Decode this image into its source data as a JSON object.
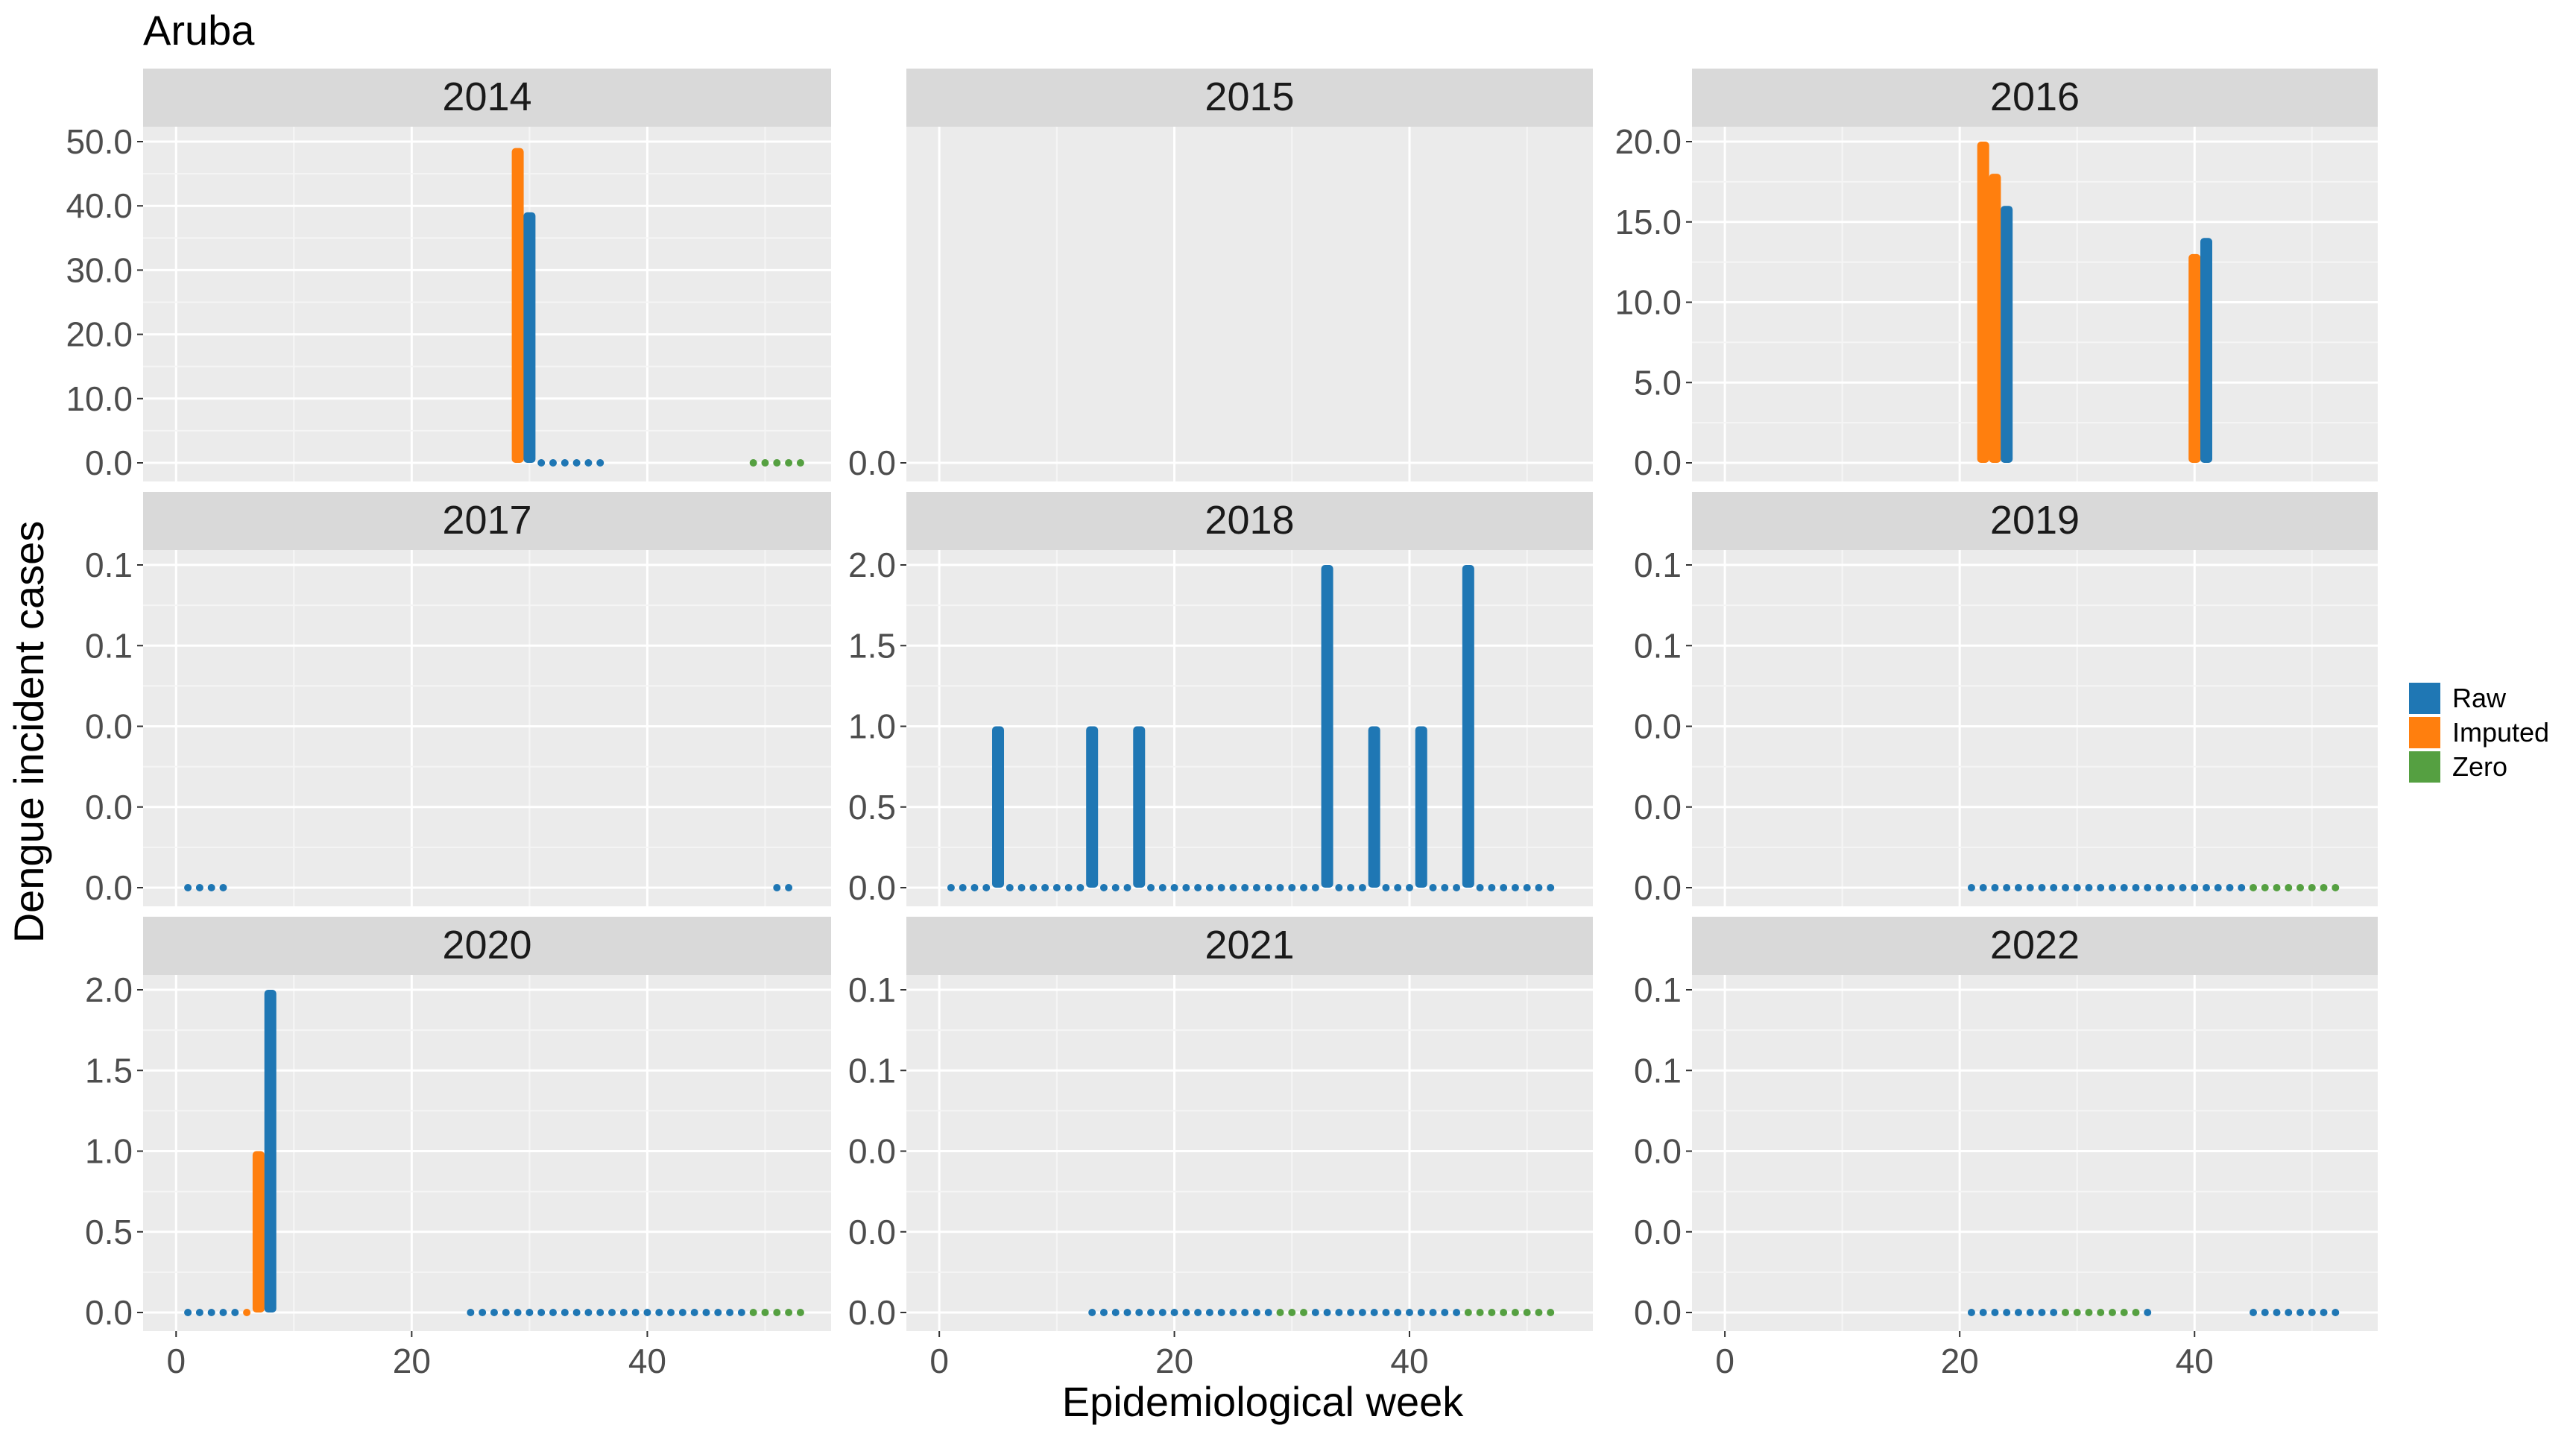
{
  "chart_data": {
    "type": "bar",
    "title": "Aruba",
    "xlabel": "Epidemiological week",
    "ylabel": "Dengue incident cases",
    "x_ticks": [
      0,
      20,
      40
    ],
    "grid": true,
    "legend": {
      "position": "right",
      "entries": [
        {
          "name": "Raw",
          "color": "#1f77b4"
        },
        {
          "name": "Imputed",
          "color": "#ff7f0e"
        },
        {
          "name": "Zero",
          "color": "#55a041"
        }
      ]
    },
    "panels": [
      {
        "year": "2014",
        "ylim": [
          0,
          50
        ],
        "y_ticks": [
          0,
          10,
          20,
          30,
          40,
          50
        ],
        "y_tick_labels": [
          "0.0",
          "10.0",
          "20.0",
          "30.0",
          "40.0",
          "50.0"
        ],
        "raw": [
          [
            30,
            39
          ],
          [
            31,
            0
          ],
          [
            32,
            0
          ],
          [
            33,
            0
          ],
          [
            34,
            0
          ],
          [
            35,
            0
          ],
          [
            36,
            0
          ]
        ],
        "imputed": [
          [
            29,
            49
          ]
        ],
        "zero": [
          [
            49,
            0
          ],
          [
            50,
            0
          ],
          [
            51,
            0
          ],
          [
            52,
            0
          ],
          [
            53,
            0
          ]
        ]
      },
      {
        "year": "2015",
        "ylim": [
          0,
          1
        ],
        "y_ticks": [
          0
        ],
        "y_tick_labels": [
          "0.0"
        ],
        "raw": [],
        "imputed": [],
        "zero": []
      },
      {
        "year": "2016",
        "ylim": [
          0,
          20
        ],
        "y_ticks": [
          0,
          5,
          10,
          15,
          20
        ],
        "y_tick_labels": [
          "0.0",
          "5.0",
          "10.0",
          "15.0",
          "20.0"
        ],
        "raw": [
          [
            24,
            16
          ],
          [
            41,
            14
          ]
        ],
        "imputed": [
          [
            22,
            20
          ],
          [
            23,
            18
          ],
          [
            40,
            13
          ]
        ],
        "zero": []
      },
      {
        "year": "2017",
        "ylim": [
          0,
          0.1
        ],
        "y_ticks": [
          0,
          0.025,
          0.05,
          0.075,
          0.1
        ],
        "y_tick_labels": [
          "0.0",
          "0.0",
          "0.0",
          "0.1",
          "0.1"
        ],
        "raw": [
          [
            1,
            0
          ],
          [
            2,
            0
          ],
          [
            3,
            0
          ],
          [
            4,
            0
          ],
          [
            51,
            0
          ],
          [
            52,
            0
          ]
        ],
        "imputed": [],
        "zero": []
      },
      {
        "year": "2018",
        "ylim": [
          0,
          2
        ],
        "y_ticks": [
          0,
          0.5,
          1,
          1.5,
          2
        ],
        "y_tick_labels": [
          "0.0",
          "0.5",
          "1.0",
          "1.5",
          "2.0"
        ],
        "raw": [
          [
            1,
            0
          ],
          [
            2,
            0
          ],
          [
            3,
            0
          ],
          [
            4,
            0
          ],
          [
            5,
            1
          ],
          [
            6,
            0
          ],
          [
            7,
            0
          ],
          [
            8,
            0
          ],
          [
            9,
            0
          ],
          [
            10,
            0
          ],
          [
            11,
            0
          ],
          [
            12,
            0
          ],
          [
            13,
            1
          ],
          [
            14,
            0
          ],
          [
            15,
            0
          ],
          [
            16,
            0
          ],
          [
            17,
            1
          ],
          [
            18,
            0
          ],
          [
            19,
            0
          ],
          [
            20,
            0
          ],
          [
            21,
            0
          ],
          [
            22,
            0
          ],
          [
            23,
            0
          ],
          [
            24,
            0
          ],
          [
            25,
            0
          ],
          [
            26,
            0
          ],
          [
            27,
            0
          ],
          [
            28,
            0
          ],
          [
            29,
            0
          ],
          [
            30,
            0
          ],
          [
            31,
            0
          ],
          [
            32,
            0
          ],
          [
            33,
            2
          ],
          [
            34,
            0
          ],
          [
            35,
            0
          ],
          [
            36,
            0
          ],
          [
            37,
            1
          ],
          [
            38,
            0
          ],
          [
            39,
            0
          ],
          [
            40,
            0
          ],
          [
            41,
            1
          ],
          [
            42,
            0
          ],
          [
            43,
            0
          ],
          [
            44,
            0
          ],
          [
            45,
            2
          ],
          [
            46,
            0
          ],
          [
            47,
            0
          ],
          [
            48,
            0
          ],
          [
            49,
            0
          ],
          [
            50,
            0
          ],
          [
            51,
            0
          ],
          [
            52,
            0
          ]
        ],
        "imputed": [],
        "zero": []
      },
      {
        "year": "2019",
        "ylim": [
          0,
          0.1
        ],
        "y_ticks": [
          0,
          0.025,
          0.05,
          0.075,
          0.1
        ],
        "y_tick_labels": [
          "0.0",
          "0.0",
          "0.0",
          "0.1",
          "0.1"
        ],
        "raw": [
          [
            21,
            0
          ],
          [
            22,
            0
          ],
          [
            23,
            0
          ],
          [
            24,
            0
          ],
          [
            25,
            0
          ],
          [
            26,
            0
          ],
          [
            27,
            0
          ],
          [
            28,
            0
          ],
          [
            29,
            0
          ],
          [
            30,
            0
          ],
          [
            31,
            0
          ],
          [
            32,
            0
          ],
          [
            33,
            0
          ],
          [
            34,
            0
          ],
          [
            35,
            0
          ],
          [
            36,
            0
          ],
          [
            37,
            0
          ],
          [
            38,
            0
          ],
          [
            39,
            0
          ],
          [
            40,
            0
          ],
          [
            41,
            0
          ],
          [
            42,
            0
          ],
          [
            43,
            0
          ],
          [
            44,
            0
          ]
        ],
        "imputed": [],
        "zero": [
          [
            45,
            0
          ],
          [
            46,
            0
          ],
          [
            47,
            0
          ],
          [
            48,
            0
          ],
          [
            49,
            0
          ],
          [
            50,
            0
          ],
          [
            51,
            0
          ],
          [
            52,
            0
          ]
        ]
      },
      {
        "year": "2020",
        "ylim": [
          0,
          2
        ],
        "y_ticks": [
          0,
          0.5,
          1,
          1.5,
          2
        ],
        "y_tick_labels": [
          "0.0",
          "0.5",
          "1.0",
          "1.5",
          "2.0"
        ],
        "raw": [
          [
            1,
            0
          ],
          [
            2,
            0
          ],
          [
            3,
            0
          ],
          [
            4,
            0
          ],
          [
            5,
            0
          ],
          [
            8,
            2
          ],
          [
            25,
            0
          ],
          [
            26,
            0
          ],
          [
            27,
            0
          ],
          [
            28,
            0
          ],
          [
            29,
            0
          ],
          [
            30,
            0
          ],
          [
            31,
            0
          ],
          [
            32,
            0
          ],
          [
            33,
            0
          ],
          [
            34,
            0
          ],
          [
            35,
            0
          ],
          [
            36,
            0
          ],
          [
            37,
            0
          ],
          [
            38,
            0
          ],
          [
            39,
            0
          ],
          [
            40,
            0
          ],
          [
            41,
            0
          ],
          [
            42,
            0
          ],
          [
            43,
            0
          ],
          [
            44,
            0
          ],
          [
            45,
            0
          ],
          [
            46,
            0
          ],
          [
            47,
            0
          ],
          [
            48,
            0
          ]
        ],
        "imputed": [
          [
            6,
            0
          ],
          [
            7,
            1
          ]
        ],
        "zero": [
          [
            49,
            0
          ],
          [
            50,
            0
          ],
          [
            51,
            0
          ],
          [
            52,
            0
          ],
          [
            53,
            0
          ]
        ]
      },
      {
        "year": "2021",
        "ylim": [
          0,
          0.1
        ],
        "y_ticks": [
          0,
          0.025,
          0.05,
          0.075,
          0.1
        ],
        "y_tick_labels": [
          "0.0",
          "0.0",
          "0.0",
          "0.1",
          "0.1"
        ],
        "raw": [
          [
            13,
            0
          ],
          [
            14,
            0
          ],
          [
            15,
            0
          ],
          [
            16,
            0
          ],
          [
            17,
            0
          ],
          [
            18,
            0
          ],
          [
            19,
            0
          ],
          [
            20,
            0
          ],
          [
            21,
            0
          ],
          [
            22,
            0
          ],
          [
            23,
            0
          ],
          [
            24,
            0
          ],
          [
            25,
            0
          ],
          [
            26,
            0
          ],
          [
            27,
            0
          ],
          [
            28,
            0
          ],
          [
            32,
            0
          ],
          [
            33,
            0
          ],
          [
            34,
            0
          ],
          [
            35,
            0
          ],
          [
            36,
            0
          ],
          [
            37,
            0
          ],
          [
            38,
            0
          ],
          [
            39,
            0
          ],
          [
            40,
            0
          ],
          [
            41,
            0
          ],
          [
            42,
            0
          ],
          [
            43,
            0
          ],
          [
            44,
            0
          ]
        ],
        "imputed": [],
        "zero": [
          [
            29,
            0
          ],
          [
            30,
            0
          ],
          [
            31,
            0
          ],
          [
            45,
            0
          ],
          [
            46,
            0
          ],
          [
            47,
            0
          ],
          [
            48,
            0
          ],
          [
            49,
            0
          ],
          [
            50,
            0
          ],
          [
            51,
            0
          ],
          [
            52,
            0
          ]
        ]
      },
      {
        "year": "2022",
        "ylim": [
          0,
          0.1
        ],
        "y_ticks": [
          0,
          0.025,
          0.05,
          0.075,
          0.1
        ],
        "y_tick_labels": [
          "0.0",
          "0.0",
          "0.0",
          "0.1",
          "0.1"
        ],
        "raw": [
          [
            21,
            0
          ],
          [
            22,
            0
          ],
          [
            23,
            0
          ],
          [
            24,
            0
          ],
          [
            25,
            0
          ],
          [
            26,
            0
          ],
          [
            27,
            0
          ],
          [
            28,
            0
          ],
          [
            36,
            0
          ],
          [
            45,
            0
          ],
          [
            46,
            0
          ],
          [
            47,
            0
          ],
          [
            48,
            0
          ],
          [
            49,
            0
          ],
          [
            50,
            0
          ],
          [
            51,
            0
          ],
          [
            52,
            0
          ]
        ],
        "imputed": [],
        "zero": [
          [
            29,
            0
          ],
          [
            30,
            0
          ],
          [
            31,
            0
          ],
          [
            32,
            0
          ],
          [
            33,
            0
          ],
          [
            34,
            0
          ],
          [
            35,
            0
          ]
        ]
      }
    ]
  }
}
